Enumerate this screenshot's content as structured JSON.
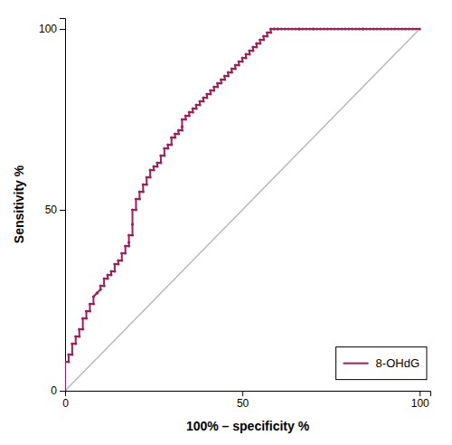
{
  "chart_data": {
    "type": "line",
    "xlabel": "100% – specificity %",
    "ylabel": "Sensitivity %",
    "xlim": [
      0,
      103
    ],
    "ylim": [
      0,
      103
    ],
    "xticks": [
      0,
      50,
      100
    ],
    "yticks": [
      0,
      50,
      100
    ],
    "legend": "lower right",
    "series": [
      {
        "color": "#B8B8B8",
        "x": [
          0,
          100
        ],
        "values": [
          0,
          100
        ]
      },
      {
        "name": "8-OHdG",
        "color": "#A31D5B",
        "marker": "circle",
        "x": [
          0,
          0,
          1,
          1,
          2,
          2,
          3,
          3,
          4,
          4,
          5,
          5,
          6,
          6,
          7,
          7,
          8,
          8,
          9,
          9,
          10,
          10,
          11,
          11,
          12,
          12,
          13,
          13,
          14,
          14,
          15,
          15,
          16,
          16,
          17,
          17,
          18,
          18,
          18,
          19,
          19,
          19,
          20,
          20,
          21,
          21,
          22,
          22,
          23,
          23,
          24,
          24,
          25,
          25,
          26,
          26,
          27,
          27,
          28,
          28,
          29,
          29,
          30,
          30,
          31,
          31,
          32,
          32,
          33,
          33,
          33,
          34,
          34,
          35,
          35,
          36,
          36,
          37,
          37,
          38,
          38,
          39,
          39,
          40,
          40,
          41,
          41,
          42,
          42,
          43,
          43,
          44,
          44,
          45,
          45,
          46,
          46,
          47,
          47,
          48,
          48,
          49,
          49,
          50,
          50,
          51,
          51,
          52,
          52,
          53,
          53,
          54,
          54,
          55,
          55,
          56,
          56,
          57,
          57,
          58,
          58,
          59,
          59,
          60,
          60,
          61,
          62,
          63,
          64,
          65,
          66,
          66,
          67,
          68,
          69,
          70,
          70,
          71,
          72,
          73,
          74,
          75,
          76,
          77,
          78,
          79,
          80,
          81,
          82,
          83,
          84,
          84,
          85,
          86,
          87,
          88,
          89,
          90,
          91,
          92,
          93,
          94,
          95,
          96,
          97,
          98,
          99,
          100
        ],
        "values": [
          0,
          8,
          8,
          10,
          10,
          13,
          13,
          15,
          15,
          17,
          17,
          20,
          20,
          22,
          22,
          24,
          24,
          26,
          27,
          27,
          28,
          29,
          29,
          31,
          31,
          32,
          32,
          33,
          33,
          35,
          35,
          36,
          36,
          38,
          38,
          40,
          40,
          41,
          43,
          43,
          46,
          50,
          50,
          53,
          53,
          55,
          55,
          57,
          57,
          59,
          59,
          61,
          61,
          62,
          62,
          63,
          63,
          65,
          65,
          67,
          67,
          68,
          68,
          70,
          70,
          71,
          71,
          72,
          72,
          73,
          75,
          75,
          76,
          76,
          77,
          77,
          78,
          78,
          79,
          79,
          80,
          80,
          81,
          81,
          82,
          82,
          83,
          83,
          84,
          84,
          85,
          85,
          86,
          86,
          87,
          87,
          88,
          88,
          89,
          89,
          90,
          90,
          91,
          91,
          92,
          92,
          93,
          93,
          94,
          94,
          95,
          95,
          96,
          96,
          97,
          97,
          98,
          98,
          99,
          99,
          100,
          100,
          100,
          100,
          100,
          100,
          100,
          100,
          100,
          100,
          100,
          100,
          100,
          100,
          100,
          100,
          100,
          100,
          100,
          100,
          100,
          100,
          100,
          100,
          100,
          100,
          100,
          100,
          100,
          100,
          100,
          100,
          100,
          100,
          100,
          100,
          100,
          100,
          100,
          100,
          100,
          100,
          100,
          100,
          100,
          100,
          100,
          100
        ]
      }
    ]
  }
}
